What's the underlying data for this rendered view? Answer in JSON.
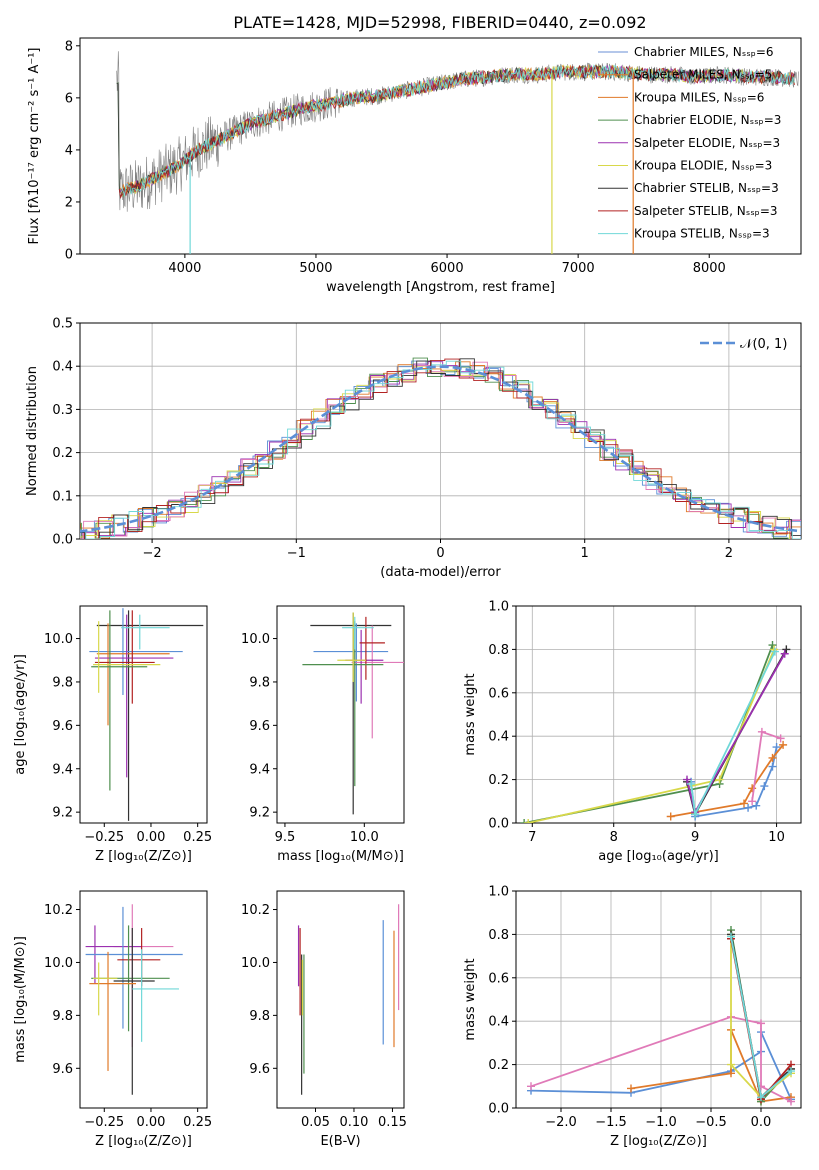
{
  "figure": {
    "title": "PLATE=1428, MJD=52998, FIBERID=0440, z=0.092",
    "model_colors": [
      "#888888",
      "#e6812d",
      "#f2a13c",
      "#6a9e6a",
      "#9b30b0",
      "#d8d84a",
      "#333333",
      "#b22222",
      "#70d8d8"
    ]
  },
  "chart_data": [
    {
      "id": "spectrum",
      "type": "line",
      "title": "PLATE=1428, MJD=52998, FIBERID=0440, z=0.092",
      "xlabel": "wavelength [Angstrom, rest frame]",
      "ylabel": "Flux [fλ10⁻¹⁷ erg cm⁻² s⁻¹ A⁻¹]",
      "xlim": [
        3200,
        8700
      ],
      "ylim": [
        0,
        8.3
      ],
      "xticks": [
        4000,
        5000,
        6000,
        7000,
        8000
      ],
      "yticks": [
        0,
        2,
        4,
        6,
        8
      ],
      "legend_position": "right",
      "legend": [
        {
          "label": "Chabrier MILES, Nₛₛₚ=6",
          "color": "#6a8fd6"
        },
        {
          "label": "Salpeter MILES, Nₛₛₚ=5",
          "color": "#e07a2a"
        },
        {
          "label": "Kroupa MILES, Nₛₛₚ=6",
          "color": "#e07a2a"
        },
        {
          "label": "Chabrier ELODIE, Nₛₛₚ=3",
          "color": "#4f8f4f"
        },
        {
          "label": "Salpeter ELODIE, Nₛₛₚ=3",
          "color": "#9b30b0"
        },
        {
          "label": "Kroupa ELODIE, Nₛₛₚ=3",
          "color": "#d8d84a"
        },
        {
          "label": "Chabrier STELIB, Nₛₛₚ=3",
          "color": "#333333"
        },
        {
          "label": "Salpeter STELIB, Nₛₛₚ=3",
          "color": "#b22222"
        },
        {
          "label": "Kroupa STELIB, Nₛₛₚ=3",
          "color": "#70d8d8"
        }
      ],
      "continuum": [
        [
          3500,
          2.4
        ],
        [
          3650,
          2.6
        ],
        [
          3800,
          3.0
        ],
        [
          3950,
          3.4
        ],
        [
          4100,
          4.0
        ],
        [
          4300,
          4.5
        ],
        [
          4500,
          5.0
        ],
        [
          4700,
          5.3
        ],
        [
          4900,
          5.6
        ],
        [
          5100,
          5.8
        ],
        [
          5300,
          6.0
        ],
        [
          5500,
          6.1
        ],
        [
          5700,
          6.3
        ],
        [
          5900,
          6.5
        ],
        [
          6100,
          6.7
        ],
        [
          6300,
          6.8
        ],
        [
          6500,
          6.9
        ],
        [
          6700,
          6.9
        ],
        [
          6900,
          7.0
        ],
        [
          7100,
          7.0
        ],
        [
          7300,
          7.0
        ],
        [
          7500,
          6.9
        ],
        [
          7700,
          6.9
        ],
        [
          7900,
          6.8
        ],
        [
          8100,
          6.9
        ],
        [
          8300,
          6.8
        ],
        [
          8500,
          6.8
        ],
        [
          8700,
          6.7
        ]
      ]
    },
    {
      "id": "residuals",
      "type": "area",
      "xlabel": "(data-model)/error",
      "ylabel": "Normed distribution",
      "xlim": [
        -2.5,
        2.5
      ],
      "ylim": [
        0,
        0.5
      ],
      "xticks": [
        -2,
        -1,
        0,
        1,
        2
      ],
      "yticks": [
        0.0,
        0.1,
        0.2,
        0.3,
        0.4,
        0.5
      ],
      "grid": true,
      "legend_position": "top-right",
      "reference_curve": {
        "label": "𝒩(0, 1)",
        "color": "#5b8fd6",
        "mean": 0,
        "sigma": 1
      },
      "bin_width": 0.1,
      "series_colors": [
        "#5b8fd6",
        "#e07a2a",
        "#4f8f4f",
        "#9b30b0",
        "#d8d84a",
        "#e07ab8",
        "#b22222",
        "#333333",
        "#70d8d8"
      ]
    },
    {
      "id": "age-vs-Z",
      "type": "scatter",
      "xlabel": "Z [log₁₀(Z/Z⊙)]",
      "ylabel": "age  [log₁₀(age/yr)]",
      "xlim": [
        -0.38,
        0.3
      ],
      "ylim": [
        9.15,
        10.15
      ],
      "xticks": [
        -0.25,
        0.0,
        0.25
      ],
      "yticks": [
        9.2,
        9.4,
        9.6,
        9.8,
        10.0
      ],
      "points": [
        {
          "x": -0.12,
          "y": 10.06,
          "xerr": [
            0.17,
            0.4
          ],
          "yerr": [
            0.9,
            0.07
          ],
          "color": "#333333"
        },
        {
          "x": -0.15,
          "y": 9.94,
          "xerr": [
            0.18,
            0.32
          ],
          "yerr": [
            0.2,
            0.2
          ],
          "color": "#5b8fd6"
        },
        {
          "x": -0.23,
          "y": 9.93,
          "xerr": [
            0.06,
            0.33
          ],
          "yerr": [
            0.33,
            0.14
          ],
          "color": "#e07a2a"
        },
        {
          "x": -0.13,
          "y": 9.91,
          "xerr": [
            0.17,
            0.25
          ],
          "yerr": [
            0.55,
            0.2
          ],
          "color": "#9b30b0"
        },
        {
          "x": -0.1,
          "y": 9.89,
          "xerr": [
            0.2,
            0.12
          ],
          "yerr": [
            0.19,
            0.24
          ],
          "color": "#b22222"
        },
        {
          "x": -0.22,
          "y": 9.87,
          "xerr": [
            0.1,
            0.2
          ],
          "yerr": [
            0.57,
            0.26
          ],
          "color": "#4f8f4f"
        },
        {
          "x": -0.28,
          "y": 9.88,
          "xerr": [
            0.03,
            0.33
          ],
          "yerr": [
            0.13,
            0.2
          ],
          "color": "#d8d84a"
        },
        {
          "x": -0.06,
          "y": 10.05,
          "xerr": [
            0.1,
            0.16
          ],
          "yerr": [
            0.1,
            0.06
          ],
          "color": "#70d8d8"
        }
      ]
    },
    {
      "id": "age-vs-mass",
      "type": "scatter",
      "xlabel": "mass [log₁₀(M/M⊙)]",
      "ylabel": "",
      "xlim": [
        9.45,
        10.25
      ],
      "ylim": [
        9.15,
        10.15
      ],
      "xticks": [
        9.5,
        10.0
      ],
      "yticks": [
        9.2,
        9.4,
        9.6,
        9.8,
        10.0
      ],
      "points": [
        {
          "x": 9.93,
          "y": 10.06,
          "xerr": [
            0.27,
            0.24
          ],
          "yerr": [
            0.87,
            0.06
          ],
          "color": "#333333"
        },
        {
          "x": 9.95,
          "y": 9.94,
          "xerr": [
            0.27,
            0.2
          ],
          "yerr": [
            0.23,
            0.13
          ],
          "color": "#5b8fd6"
        },
        {
          "x": 10.05,
          "y": 9.89,
          "xerr": [
            0.13,
            0.2
          ],
          "yerr": [
            0.35,
            0.17
          ],
          "color": "#e07ab8"
        },
        {
          "x": 9.98,
          "y": 9.9,
          "xerr": [
            0.1,
            0.14
          ],
          "yerr": [
            0.2,
            0.14
          ],
          "color": "#9b30b0"
        },
        {
          "x": 10.01,
          "y": 9.98,
          "xerr": [
            0.04,
            0.12
          ],
          "yerr": [
            0.17,
            0.12
          ],
          "color": "#b22222"
        },
        {
          "x": 9.94,
          "y": 9.88,
          "xerr": [
            0.33,
            0.18
          ],
          "yerr": [
            0.56,
            0.2
          ],
          "color": "#4f8f4f"
        },
        {
          "x": 9.93,
          "y": 9.9,
          "xerr": [
            0.1,
            0.08
          ],
          "yerr": [
            0.1,
            0.22
          ],
          "color": "#d8d84a"
        },
        {
          "x": 9.94,
          "y": 10.05,
          "xerr": [
            0.08,
            0.12
          ],
          "yerr": [
            0.1,
            0.05
          ],
          "color": "#70d8d8"
        }
      ]
    },
    {
      "id": "weight-vs-age",
      "type": "line",
      "xlabel": "age  [log₁₀(age/yr)]",
      "ylabel": "mass weight",
      "xlim": [
        6.8,
        10.3
      ],
      "ylim": [
        0,
        1.0
      ],
      "xticks": [
        7,
        8,
        9,
        10
      ],
      "yticks": [
        0.0,
        0.2,
        0.4,
        0.6,
        0.8,
        1.0
      ],
      "grid": true,
      "series": [
        {
          "color": "#5b8fd6",
          "points": [
            [
              8.95,
              0.19
            ],
            [
              9.0,
              0.03
            ],
            [
              9.65,
              0.07
            ],
            [
              9.75,
              0.08
            ],
            [
              9.85,
              0.17
            ],
            [
              9.95,
              0.26
            ],
            [
              10.0,
              0.35
            ]
          ]
        },
        {
          "color": "#e07a2a",
          "points": [
            [
              8.7,
              0.03
            ],
            [
              9.0,
              0.05
            ],
            [
              9.6,
              0.09
            ],
            [
              9.7,
              0.16
            ],
            [
              9.95,
              0.3
            ],
            [
              10.08,
              0.36
            ]
          ]
        },
        {
          "color": "#e07ab8",
          "points": [
            [
              9.7,
              0.1
            ],
            [
              9.82,
              0.42
            ],
            [
              10.05,
              0.39
            ]
          ]
        },
        {
          "color": "#4f8f4f",
          "points": [
            [
              6.9,
              0.0
            ],
            [
              9.3,
              0.18
            ],
            [
              9.95,
              0.82
            ]
          ]
        },
        {
          "color": "#d8d84a",
          "points": [
            [
              6.95,
              0.0
            ],
            [
              9.3,
              0.2
            ],
            [
              9.97,
              0.8
            ]
          ]
        },
        {
          "color": "#333333",
          "points": [
            [
              8.9,
              0.19
            ],
            [
              9.0,
              0.04
            ],
            [
              10.12,
              0.8
            ]
          ]
        },
        {
          "color": "#9b30b0",
          "points": [
            [
              8.9,
              0.2
            ],
            [
              9.0,
              0.05
            ],
            [
              10.1,
              0.78
            ]
          ]
        },
        {
          "color": "#70d8d8",
          "points": [
            [
              8.95,
              0.18
            ],
            [
              9.0,
              0.04
            ],
            [
              9.98,
              0.79
            ]
          ]
        }
      ]
    },
    {
      "id": "mass-vs-Z",
      "type": "scatter",
      "xlabel": "Z [log₁₀(Z/Z⊙)]",
      "ylabel": "mass [log₁₀(M/M⊙)]",
      "xlim": [
        -0.38,
        0.3
      ],
      "ylim": [
        9.45,
        10.27
      ],
      "xticks": [
        -0.25,
        0.0,
        0.25
      ],
      "yticks": [
        9.6,
        9.8,
        10.0,
        10.2
      ],
      "points": [
        {
          "x": -0.1,
          "y": 10.06,
          "xerr": [
            0.1,
            0.22
          ],
          "yerr": [
            0.38,
            0.16
          ],
          "color": "#e07ab8"
        },
        {
          "x": -0.3,
          "y": 10.06,
          "xerr": [
            0.05,
            0.25
          ],
          "yerr": [
            0.14,
            0.08
          ],
          "color": "#9b30b0"
        },
        {
          "x": -0.15,
          "y": 10.03,
          "xerr": [
            0.2,
            0.32
          ],
          "yerr": [
            0.28,
            0.18
          ],
          "color": "#5b8fd6"
        },
        {
          "x": -0.05,
          "y": 10.01,
          "xerr": [
            0.13,
            0.1
          ],
          "yerr": [
            0.1,
            0.12
          ],
          "color": "#b22222"
        },
        {
          "x": -0.12,
          "y": 9.94,
          "xerr": [
            0.2,
            0.22
          ],
          "yerr": [
            0.2,
            0.2
          ],
          "color": "#4f8f4f"
        },
        {
          "x": -0.1,
          "y": 9.93,
          "xerr": [
            0.1,
            0.12
          ],
          "yerr": [
            0.43,
            0.2
          ],
          "color": "#333333"
        },
        {
          "x": -0.23,
          "y": 9.92,
          "xerr": [
            0.1,
            0.15
          ],
          "yerr": [
            0.33,
            0.12
          ],
          "color": "#e07a2a"
        },
        {
          "x": -0.05,
          "y": 9.9,
          "xerr": [
            0.05,
            0.2
          ],
          "yerr": [
            0.2,
            0.15
          ],
          "color": "#70d8d8"
        },
        {
          "x": -0.28,
          "y": 9.94,
          "xerr": [
            0.03,
            0.1
          ],
          "yerr": [
            0.14,
            0.06
          ],
          "color": "#d8d84a"
        }
      ]
    },
    {
      "id": "mass-vs-ebv",
      "type": "scatter",
      "xlabel": "E(B-V)",
      "ylabel": "",
      "xlim": [
        0.0,
        0.165
      ],
      "ylim": [
        9.45,
        10.27
      ],
      "xticks": [
        0.05,
        0.1,
        0.15
      ],
      "yticks": [
        9.6,
        9.8,
        10.0,
        10.2
      ],
      "points": [
        {
          "x": 0.028,
          "y": 10.04,
          "yerr": [
            0.13,
            0.1
          ],
          "color": "#9b30b0"
        },
        {
          "x": 0.03,
          "y": 10.0,
          "yerr": [
            0.2,
            0.13
          ],
          "color": "#b22222"
        },
        {
          "x": 0.032,
          "y": 9.93,
          "yerr": [
            0.43,
            0.1
          ],
          "color": "#333333"
        },
        {
          "x": 0.035,
          "y": 9.98,
          "yerr": [
            0.4,
            0.05
          ],
          "color": "#4f8f4f"
        },
        {
          "x": 0.033,
          "y": 9.95,
          "yerr": [
            0.15,
            0.06
          ],
          "color": "#d8d84a"
        },
        {
          "x": 0.138,
          "y": 9.93,
          "yerr": [
            0.24,
            0.23
          ],
          "color": "#5b8fd6"
        },
        {
          "x": 0.152,
          "y": 9.9,
          "yerr": [
            0.22,
            0.22
          ],
          "color": "#e07a2a"
        },
        {
          "x": 0.158,
          "y": 10.02,
          "yerr": [
            0.2,
            0.2
          ],
          "color": "#e07ab8"
        }
      ]
    },
    {
      "id": "weight-vs-Z",
      "type": "line",
      "xlabel": "Z [log₁₀(Z/Z⊙)]",
      "ylabel": "mass weight",
      "xlim": [
        -2.45,
        0.4
      ],
      "ylim": [
        0,
        1.0
      ],
      "xticks": [
        -2.0,
        -1.5,
        -1.0,
        -0.5,
        0.0
      ],
      "yticks": [
        0.0,
        0.2,
        0.4,
        0.6,
        0.8,
        1.0
      ],
      "grid": true,
      "series": [
        {
          "color": "#5b8fd6",
          "points": [
            [
              -2.3,
              0.08
            ],
            [
              -1.3,
              0.07
            ],
            [
              -0.3,
              0.17
            ],
            [
              0.0,
              0.26
            ],
            [
              0.0,
              0.35
            ],
            [
              0.3,
              0.04
            ]
          ]
        },
        {
          "color": "#e07a2a",
          "points": [
            [
              -1.3,
              0.09
            ],
            [
              -0.3,
              0.16
            ],
            [
              -0.3,
              0.36
            ],
            [
              0.0,
              0.03
            ],
            [
              0.3,
              0.05
            ]
          ]
        },
        {
          "color": "#e07ab8",
          "points": [
            [
              -2.3,
              0.1
            ],
            [
              -0.3,
              0.42
            ],
            [
              0.0,
              0.39
            ],
            [
              0.0,
              0.1
            ],
            [
              0.3,
              0.03
            ]
          ]
        },
        {
          "color": "#4f8f4f",
          "points": [
            [
              -0.3,
              0.82
            ],
            [
              0.0,
              0.03
            ],
            [
              0.3,
              0.18
            ]
          ]
        },
        {
          "color": "#d8d84a",
          "points": [
            [
              -0.3,
              0.8
            ],
            [
              -0.3,
              0.2
            ],
            [
              0.0,
              0.05
            ],
            [
              0.3,
              0.16
            ]
          ]
        },
        {
          "color": "#333333",
          "points": [
            [
              -0.3,
              0.8
            ],
            [
              0.0,
              0.05
            ],
            [
              0.3,
              0.18
            ]
          ]
        },
        {
          "color": "#b22222",
          "points": [
            [
              -0.3,
              0.78
            ],
            [
              0.0,
              0.04
            ],
            [
              0.3,
              0.2
            ]
          ]
        },
        {
          "color": "#70d8d8",
          "points": [
            [
              -0.3,
              0.79
            ],
            [
              0.0,
              0.05
            ],
            [
              0.3,
              0.17
            ]
          ]
        }
      ]
    }
  ]
}
